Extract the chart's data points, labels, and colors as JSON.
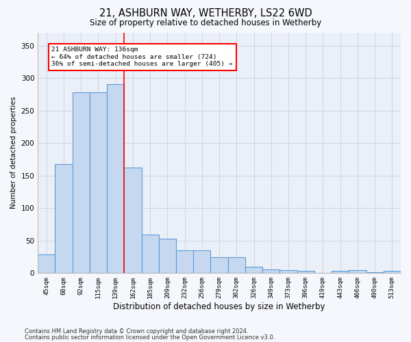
{
  "title1": "21, ASHBURN WAY, WETHERBY, LS22 6WD",
  "title2": "Size of property relative to detached houses in Wetherby",
  "xlabel": "Distribution of detached houses by size in Wetherby",
  "ylabel": "Number of detached properties",
  "categories": [
    "45sqm",
    "68sqm",
    "92sqm",
    "115sqm",
    "139sqm",
    "162sqm",
    "185sqm",
    "209sqm",
    "232sqm",
    "256sqm",
    "279sqm",
    "302sqm",
    "326sqm",
    "349sqm",
    "373sqm",
    "396sqm",
    "419sqm",
    "443sqm",
    "466sqm",
    "490sqm",
    "513sqm"
  ],
  "values": [
    29,
    168,
    278,
    278,
    291,
    162,
    59,
    53,
    35,
    35,
    25,
    25,
    10,
    6,
    5,
    3,
    0,
    4,
    5,
    1,
    4
  ],
  "bar_color": "#c5d8f0",
  "bar_edge_color": "#5b9bd5",
  "bar_linewidth": 0.8,
  "red_line_index": 4,
  "annotation_line1": "21 ASHBURN WAY: 136sqm",
  "annotation_line2": "← 64% of detached houses are smaller (724)",
  "annotation_line3": "36% of semi-detached houses are larger (405) →",
  "ylim": [
    0,
    370
  ],
  "yticks": [
    0,
    50,
    100,
    150,
    200,
    250,
    300,
    350
  ],
  "grid_color": "#cdd5e5",
  "bg_color": "#eaeff8",
  "fig_bg_color": "#f5f7fc",
  "footnote1": "Contains HM Land Registry data © Crown copyright and database right 2024.",
  "footnote2": "Contains public sector information licensed under the Open Government Licence v3.0."
}
